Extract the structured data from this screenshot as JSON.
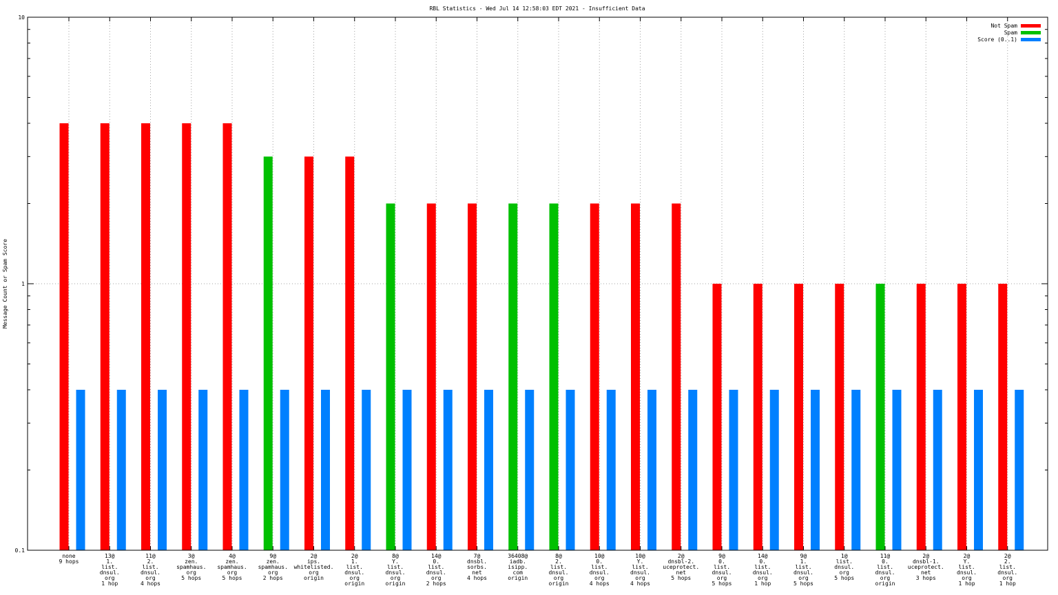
{
  "chart_data": {
    "type": "bar",
    "title": "RBL Statistics - Wed Jul 14 12:58:03 EDT 2021 - Insufficient Data",
    "ylabel": "Message Count or Spam Score",
    "xlabel": "",
    "yscale": "log",
    "ylim": [
      0.1,
      10
    ],
    "y_ticks": [
      {
        "value": 10,
        "label": "10"
      },
      {
        "value": 1,
        "label": "1"
      },
      {
        "value": 0.1,
        "label": "0.1"
      }
    ],
    "grid": true,
    "legend_position": "top-right",
    "categories": [
      [
        "none",
        "9 hops"
      ],
      [
        "13@",
        "1.",
        "list.",
        "dnsul.",
        "org",
        "1 hop"
      ],
      [
        "11@",
        "2.",
        "list.",
        "dnsul.",
        "org",
        "4 hops"
      ],
      [
        "3@",
        "zen.",
        "spamhaus.",
        "org",
        "5 hops"
      ],
      [
        "4@",
        "zen.",
        "spamhaus.",
        "org",
        "5 hops"
      ],
      [
        "9@",
        "zen.",
        "spamhaus.",
        "org",
        "2 hops"
      ],
      [
        "2@",
        "ips.",
        "whitelisted.",
        "org",
        "origin"
      ],
      [
        "2@",
        "1.",
        "list.",
        "dnsul.",
        "org",
        "origin"
      ],
      [
        "8@",
        "Y.",
        "list.",
        "dnsul.",
        "org",
        "origin"
      ],
      [
        "14@",
        "0.",
        "list.",
        "dnsul.",
        "org",
        "2 hops"
      ],
      [
        "7@",
        "dnsbl.",
        "sorbs.",
        "net",
        "4 hops"
      ],
      [
        "36408@",
        "iadb.",
        "isipp.",
        "com",
        "origin"
      ],
      [
        "8@",
        "2.",
        "list.",
        "dnsul.",
        "org",
        "origin"
      ],
      [
        "10@",
        "0.",
        "list.",
        "dnsul.",
        "org",
        "4 hops"
      ],
      [
        "10@",
        "Y.",
        "list.",
        "dnsul.",
        "org",
        "4 hops"
      ],
      [
        "2@",
        "dnsbl-2.",
        "uceprotect.",
        "net",
        "5 hops"
      ],
      [
        "9@",
        "0.",
        "list.",
        "dnsul.",
        "org",
        "5 hops"
      ],
      [
        "14@",
        "0.",
        "list.",
        "dnsul.",
        "org",
        "1 hop"
      ],
      [
        "9@",
        "1.",
        "list.",
        "dnsul.",
        "org",
        "5 hops"
      ],
      [
        "1@",
        "list.",
        "dnsul.",
        "org",
        "5 hops"
      ],
      [
        "11@",
        "0.",
        "list.",
        "dnsul.",
        "org",
        "origin"
      ],
      [
        "2@",
        "dnsbl-1.",
        "uceprotect.",
        "net",
        "3 hops"
      ],
      [
        "2@",
        "Y.",
        "list.",
        "dnsul.",
        "org",
        "1 hop"
      ],
      [
        "2@",
        "2.",
        "list.",
        "dnsul.",
        "org",
        "1 hop"
      ]
    ],
    "series": [
      {
        "name": "Not Spam",
        "color": "#ff0000",
        "values": [
          4,
          4,
          4,
          4,
          4,
          null,
          3,
          3,
          null,
          2,
          2,
          null,
          null,
          2,
          2,
          2,
          1,
          1,
          1,
          1,
          null,
          1,
          1,
          1
        ]
      },
      {
        "name": "Spam",
        "color": "#00c000",
        "values": [
          null,
          null,
          null,
          null,
          null,
          3,
          null,
          null,
          2,
          null,
          null,
          2,
          2,
          null,
          null,
          null,
          null,
          null,
          null,
          null,
          1,
          null,
          null,
          null
        ]
      },
      {
        "name": "Score (0..1)",
        "color": "#0080ff",
        "values": [
          0.4,
          0.4,
          0.4,
          0.4,
          0.4,
          0.4,
          0.4,
          0.4,
          0.4,
          0.4,
          0.4,
          0.4,
          0.4,
          0.4,
          0.4,
          0.4,
          0.4,
          0.4,
          0.4,
          0.4,
          0.4,
          0.4,
          0.4,
          0.4
        ]
      }
    ]
  }
}
